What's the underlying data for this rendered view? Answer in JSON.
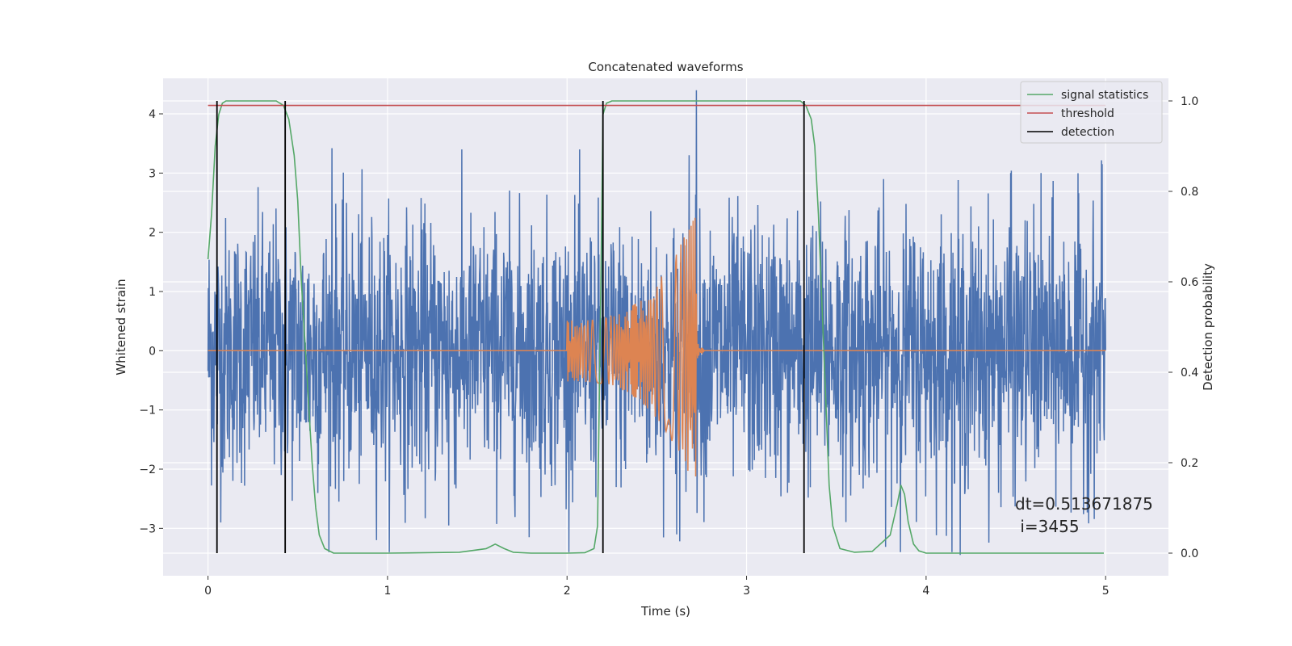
{
  "chart_data": {
    "type": "line",
    "title": "Concatenated waveforms",
    "xlabel": "Time (s)",
    "ylabel": "Whitened strain",
    "y2label": "Detection probability",
    "xlim": [
      -0.25,
      5.35
    ],
    "ylim": [
      -3.8,
      4.6
    ],
    "y2lim": [
      -0.05,
      1.05
    ],
    "x_ticks": [
      0,
      1,
      2,
      3,
      4,
      5
    ],
    "y_ticks": [
      -3,
      -2,
      -1,
      0,
      1,
      2,
      3,
      4
    ],
    "y2_ticks": [
      0.0,
      0.2,
      0.4,
      0.6,
      0.8,
      1.0
    ],
    "x_tick_labels": [
      "0",
      "1",
      "2",
      "3",
      "4",
      "5"
    ],
    "y_tick_labels": [
      "−3",
      "−2",
      "−1",
      "0",
      "1",
      "2",
      "3",
      "4"
    ],
    "y2_tick_labels": [
      "0.0",
      "0.2",
      "0.4",
      "0.6",
      "0.8",
      "1.0"
    ],
    "grid": true,
    "legend_position": "top-right",
    "legend": [
      "signal statistics",
      "threshold",
      "detection"
    ],
    "colors": {
      "noise": "#4c72b0",
      "injection": "#dd8452",
      "signal_statistics": "#55a868",
      "threshold": "#c44e52",
      "detection": "#000000",
      "background": "#eaeaf2",
      "grid": "#ffffff"
    },
    "series": [
      {
        "name": "noise strain",
        "axis": "left",
        "t_range": [
          0,
          5
        ],
        "envelope_typical": 1.3,
        "envelope_peak": 3.4,
        "peaks": [
          {
            "t": 0.69,
            "y": 3.42
          },
          {
            "t": 2.72,
            "y": 4.4
          },
          {
            "t": 2.68,
            "y": 3.3
          },
          {
            "t": 4.47,
            "y": 3.0
          },
          {
            "t": 4.98,
            "y": 3.15
          },
          {
            "t": 4.19,
            "y": -3.45
          },
          {
            "t": 2.61,
            "y": -3.1
          },
          {
            "t": 1.34,
            "y": -2.95
          }
        ]
      },
      {
        "name": "injected signal",
        "axis": "left",
        "chirp_start": 2.0,
        "chirp_end": 2.72,
        "amplitude_start": 0.52,
        "amplitude_end": 2.4
      },
      {
        "name": "signal statistics",
        "axis": "right",
        "x": [
          0.0,
          0.02,
          0.04,
          0.06,
          0.08,
          0.1,
          0.14,
          0.2,
          0.3,
          0.38,
          0.42,
          0.45,
          0.48,
          0.5,
          0.52,
          0.55,
          0.58,
          0.6,
          0.62,
          0.65,
          0.7,
          1.0,
          1.4,
          1.55,
          1.6,
          1.65,
          1.7,
          1.8,
          2.0,
          2.1,
          2.15,
          2.17,
          2.19,
          2.2,
          2.22,
          2.25,
          2.3,
          2.6,
          3.0,
          3.3,
          3.33,
          3.36,
          3.38,
          3.4,
          3.42,
          3.44,
          3.46,
          3.48,
          3.52,
          3.6,
          3.7,
          3.8,
          3.84,
          3.86,
          3.88,
          3.9,
          3.93,
          3.96,
          4.0,
          4.2,
          4.6,
          4.99
        ],
        "y": [
          0.65,
          0.75,
          0.9,
          0.97,
          0.995,
          1.0,
          1.0,
          1.0,
          1.0,
          1.0,
          0.99,
          0.96,
          0.88,
          0.78,
          0.6,
          0.4,
          0.2,
          0.1,
          0.04,
          0.01,
          0.0,
          0.0,
          0.002,
          0.01,
          0.02,
          0.01,
          0.002,
          0.0,
          0.0,
          0.001,
          0.01,
          0.06,
          0.65,
          0.97,
          0.995,
          1.0,
          1.0,
          1.0,
          1.0,
          1.0,
          0.99,
          0.96,
          0.9,
          0.75,
          0.55,
          0.35,
          0.15,
          0.06,
          0.01,
          0.002,
          0.004,
          0.04,
          0.11,
          0.15,
          0.13,
          0.07,
          0.02,
          0.005,
          0.0,
          0.0,
          0.0,
          0.0
        ]
      },
      {
        "name": "threshold",
        "axis": "right",
        "x": [
          0,
          5
        ],
        "y": [
          0.99,
          0.99
        ]
      }
    ],
    "detections": [
      0.05,
      0.43,
      2.2,
      3.32
    ],
    "annotation": {
      "line1": "dt=0.513671875",
      "line2": " i=3455"
    }
  }
}
